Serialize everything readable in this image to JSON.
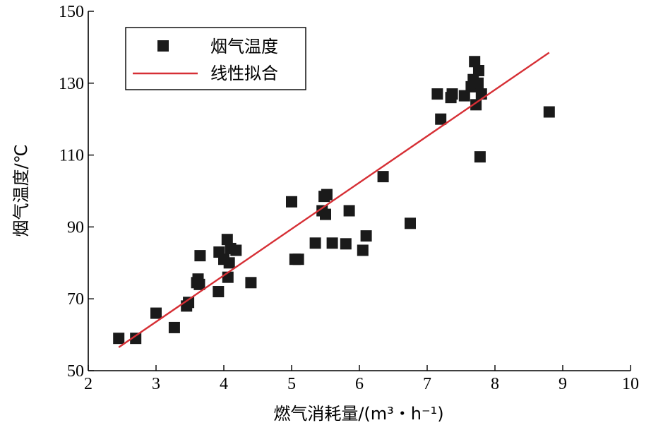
{
  "chart_data": {
    "type": "scatter",
    "xlabel": "燃气消耗量/(m³・h⁻¹)",
    "ylabel": "烟气温度/℃",
    "xlim": [
      2,
      10
    ],
    "ylim": [
      50,
      150
    ],
    "xticks": [
      "2",
      "3",
      "4",
      "5",
      "6",
      "7",
      "8",
      "9",
      "10"
    ],
    "yticks": [
      "50",
      "70",
      "90",
      "110",
      "130",
      "150"
    ],
    "legend_position": "top-left",
    "grid": false,
    "series": [
      {
        "name": "烟气温度",
        "kind": "scatter",
        "marker": "square",
        "color": "#1a1a1a",
        "points": [
          [
            2.45,
            59
          ],
          [
            2.7,
            59
          ],
          [
            3.0,
            66
          ],
          [
            3.27,
            62
          ],
          [
            3.45,
            68
          ],
          [
            3.48,
            69
          ],
          [
            3.6,
            74.5
          ],
          [
            3.62,
            75.5
          ],
          [
            3.64,
            74
          ],
          [
            3.65,
            82
          ],
          [
            3.92,
            72
          ],
          [
            3.93,
            83
          ],
          [
            4.0,
            81
          ],
          [
            4.05,
            86.5
          ],
          [
            4.06,
            76
          ],
          [
            4.08,
            80
          ],
          [
            4.1,
            84
          ],
          [
            4.18,
            83.5
          ],
          [
            4.4,
            74.5
          ],
          [
            5.0,
            97
          ],
          [
            5.05,
            81
          ],
          [
            5.1,
            81
          ],
          [
            5.35,
            85.5
          ],
          [
            5.45,
            94.5
          ],
          [
            5.48,
            98.5
          ],
          [
            5.5,
            93.5
          ],
          [
            5.52,
            99
          ],
          [
            5.6,
            85.5
          ],
          [
            5.8,
            85.3
          ],
          [
            5.85,
            94.5
          ],
          [
            6.05,
            83.5
          ],
          [
            6.1,
            87.5
          ],
          [
            6.35,
            104
          ],
          [
            6.75,
            91
          ],
          [
            7.15,
            127
          ],
          [
            7.2,
            120
          ],
          [
            7.35,
            126
          ],
          [
            7.37,
            127
          ],
          [
            7.55,
            126.5
          ],
          [
            7.65,
            129
          ],
          [
            7.68,
            131
          ],
          [
            7.7,
            136
          ],
          [
            7.72,
            124
          ],
          [
            7.75,
            130
          ],
          [
            7.76,
            133.5
          ],
          [
            7.78,
            109.5
          ],
          [
            7.8,
            127
          ],
          [
            8.8,
            122
          ]
        ]
      },
      {
        "name": "线性拟合",
        "kind": "line",
        "color": "#d62f35",
        "points": [
          [
            2.45,
            56.5
          ],
          [
            8.8,
            138.5
          ]
        ]
      }
    ]
  }
}
